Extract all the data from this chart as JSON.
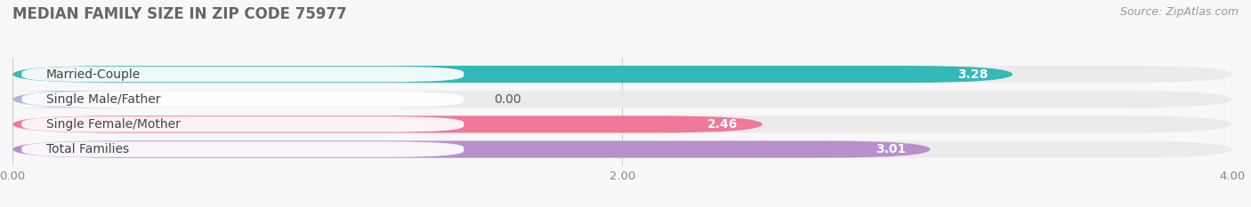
{
  "title": "MEDIAN FAMILY SIZE IN ZIP CODE 75977",
  "source": "Source: ZipAtlas.com",
  "categories": [
    "Married-Couple",
    "Single Male/Father",
    "Single Female/Mother",
    "Total Families"
  ],
  "values": [
    3.28,
    0.0,
    2.46,
    3.01
  ],
  "bar_colors": [
    "#35b8b8",
    "#aab4e8",
    "#f07898",
    "#b890cc"
  ],
  "bar_bg_color": "#ebebeb",
  "label_bg_color": "#ffffff",
  "xlim": [
    0,
    4.0
  ],
  "xticks": [
    0.0,
    2.0,
    4.0
  ],
  "page_bg": "#f8f8f8",
  "label_fontsize": 10,
  "value_fontsize": 10,
  "title_fontsize": 12,
  "source_fontsize": 9,
  "bar_height": 0.68,
  "rounding": 0.35
}
